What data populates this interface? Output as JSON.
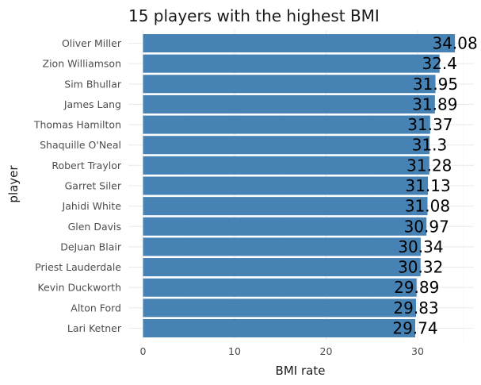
{
  "chart_data": {
    "type": "bar",
    "orientation": "horizontal",
    "title": "15 players with the highest BMI",
    "xlabel": "BMI rate",
    "ylabel": "player",
    "categories": [
      "Oliver Miller",
      "Zion Williamson",
      "Sim Bhullar",
      "James Lang",
      "Thomas Hamilton",
      "Shaquille O'Neal",
      "Robert Traylor",
      "Garret Siler",
      "Jahidi White",
      "Glen Davis",
      "DeJuan Blair",
      "Priest Lauderdale",
      "Kevin Duckworth",
      "Alton Ford",
      "Lari Ketner"
    ],
    "values": [
      34.08,
      32.4,
      31.95,
      31.89,
      31.37,
      31.3,
      31.28,
      31.13,
      31.08,
      30.97,
      30.34,
      30.32,
      29.89,
      29.83,
      29.74
    ],
    "value_labels": [
      "34.08",
      "32.4",
      "31.95",
      "31.89",
      "31.37",
      "31.3",
      "31.28",
      "31.13",
      "31.08",
      "30.97",
      "30.34",
      "30.32",
      "29.89",
      "29.83",
      "29.74"
    ],
    "xlim": [
      0,
      35.8
    ],
    "xticks": [
      0,
      10,
      20,
      30
    ],
    "grid": true,
    "bar_color": "#4682B4"
  }
}
